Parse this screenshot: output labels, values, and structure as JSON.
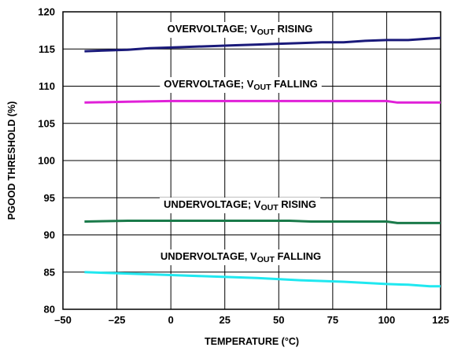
{
  "chart_data": {
    "type": "line",
    "title": "",
    "xlabel": "TEMPERATURE (°C)",
    "ylabel": "PGOOD THRESHOLD (%)",
    "xlim": [
      -50,
      125
    ],
    "ylim": [
      80,
      120
    ],
    "xticks": [
      -50,
      -25,
      0,
      25,
      50,
      75,
      100,
      125
    ],
    "xtick_labels": [
      "–50",
      "–25",
      "0",
      "25",
      "50",
      "75",
      "100",
      "125"
    ],
    "yticks": [
      80,
      85,
      90,
      95,
      100,
      105,
      110,
      115,
      120
    ],
    "ytick_labels": [
      "80",
      "85",
      "90",
      "95",
      "100",
      "105",
      "110",
      "115",
      "120"
    ],
    "grid": true,
    "legend": "none",
    "series": [
      {
        "name": "OVERVOLTAGE; VOUT RISING",
        "label": {
          "prefix": "OVERVOLTAGE; V",
          "sub": "OUT",
          "suffix": " RISING"
        },
        "color": "#1a1a7a",
        "x": [
          -40,
          -30,
          -20,
          -10,
          0,
          10,
          20,
          30,
          40,
          50,
          60,
          70,
          80,
          90,
          100,
          110,
          120,
          125
        ],
        "y": [
          114.7,
          114.8,
          114.9,
          115.1,
          115.2,
          115.3,
          115.4,
          115.5,
          115.6,
          115.7,
          115.8,
          115.9,
          115.9,
          116.1,
          116.2,
          116.2,
          116.4,
          116.5
        ]
      },
      {
        "name": "OVERVOLTAGE; VOUT FALLING",
        "label": {
          "prefix": "OVERVOLTAGE; V",
          "sub": "OUT",
          "suffix": " FALLING"
        },
        "color": "#e020d8",
        "x": [
          -40,
          -20,
          0,
          20,
          40,
          60,
          80,
          100,
          105,
          110,
          125
        ],
        "y": [
          107.8,
          107.9,
          108.0,
          108.0,
          108.0,
          108.0,
          108.0,
          108.0,
          107.8,
          107.8,
          107.8
        ]
      },
      {
        "name": "UNDERVOLTAGE; VOUT RISING",
        "label": {
          "prefix": "UNDERVOLTAGE; V",
          "sub": "OUT",
          "suffix": " RISING"
        },
        "color": "#1a7a4a",
        "x": [
          -40,
          -20,
          0,
          20,
          40,
          55,
          65,
          80,
          100,
          105,
          125
        ],
        "y": [
          91.8,
          91.9,
          91.9,
          91.9,
          91.9,
          91.9,
          91.8,
          91.8,
          91.8,
          91.6,
          91.6
        ]
      },
      {
        "name": "UNDERVOLTAGE, VOUT FALLING",
        "label": {
          "prefix": "UNDERVOLTAGE, V",
          "sub": "OUT",
          "suffix": " FALLING"
        },
        "color": "#20e8f0",
        "x": [
          -40,
          -20,
          0,
          20,
          40,
          60,
          80,
          100,
          110,
          120,
          125
        ],
        "y": [
          85.0,
          84.8,
          84.6,
          84.4,
          84.2,
          83.9,
          83.7,
          83.4,
          83.3,
          83.1,
          83.1
        ]
      }
    ]
  }
}
